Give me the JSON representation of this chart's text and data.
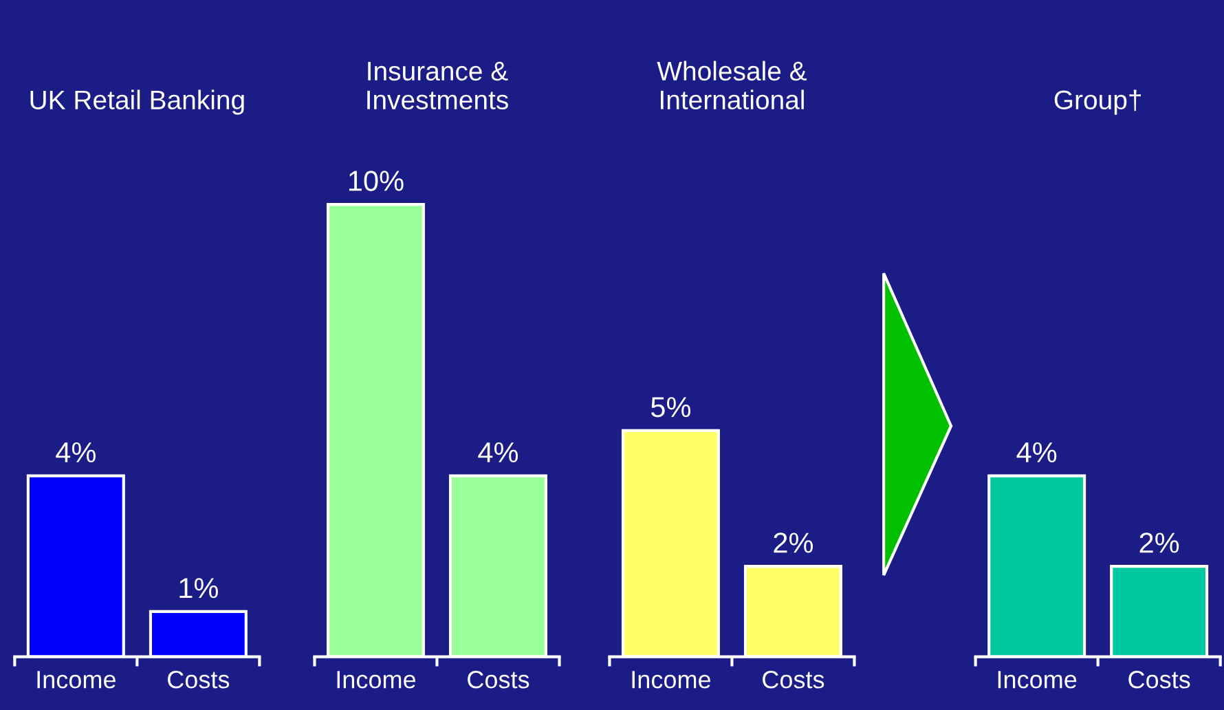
{
  "chart_data": [
    {
      "type": "bar",
      "title": "UK Retail Banking",
      "categories": [
        "Income",
        "Costs"
      ],
      "values": [
        4,
        1
      ],
      "color": "#0000ff",
      "value_labels": [
        "4%",
        "1%"
      ]
    },
    {
      "type": "bar",
      "title": "Insurance &\nInvestments",
      "categories": [
        "Income",
        "Costs"
      ],
      "values": [
        10,
        4
      ],
      "color": "#99ff99",
      "value_labels": [
        "10%",
        "4%"
      ]
    },
    {
      "type": "bar",
      "title": "Wholesale &\nInternational",
      "categories": [
        "Income",
        "Costs"
      ],
      "values": [
        5,
        2
      ],
      "color": "#ffff66",
      "value_labels": [
        "5%",
        "2%"
      ]
    },
    {
      "type": "bar",
      "title": "Group†",
      "categories": [
        "Income",
        "Costs"
      ],
      "values": [
        4,
        2
      ],
      "color": "#00c8a0",
      "value_labels": [
        "4%",
        "2%"
      ]
    }
  ]
}
